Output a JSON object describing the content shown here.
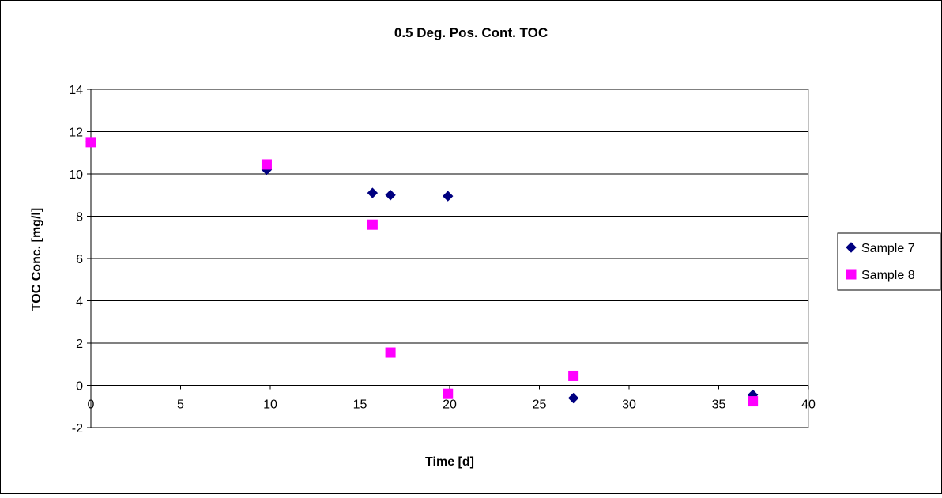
{
  "chart_data": {
    "type": "scatter",
    "title": "0.5 Deg. Pos. Cont. TOC",
    "xlabel": "Time [d]",
    "ylabel": "TOC Conc. [mg/l]",
    "xlim": [
      0,
      40
    ],
    "ylim": [
      -2,
      14
    ],
    "x_ticks": [
      "0",
      "5",
      "10",
      "15",
      "20",
      "25",
      "30",
      "35",
      "40"
    ],
    "y_ticks": [
      "14",
      "12",
      "10",
      "8",
      "6",
      "4",
      "2",
      "0",
      "-2"
    ],
    "grid": "horizontal",
    "legend_position": "right",
    "series": [
      {
        "name": "Sample 7",
        "marker": "diamond",
        "color": "#000080",
        "x": [
          0,
          9.8,
          15.7,
          16.7,
          19.9,
          26.9,
          36.9
        ],
        "y": [
          11.5,
          10.2,
          9.1,
          9.0,
          8.95,
          -0.6,
          -0.45
        ]
      },
      {
        "name": "Sample 8",
        "marker": "square",
        "color": "#FF00FF",
        "x": [
          0,
          9.8,
          15.7,
          16.7,
          19.9,
          26.9,
          36.9
        ],
        "y": [
          11.5,
          10.45,
          7.6,
          1.55,
          -0.4,
          0.45,
          -0.75
        ]
      }
    ]
  }
}
